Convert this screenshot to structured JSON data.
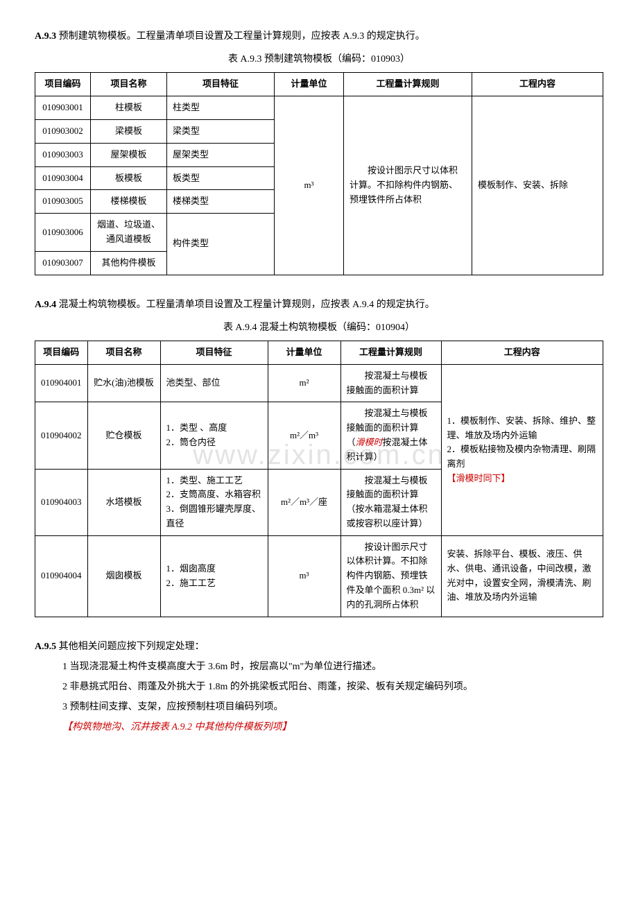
{
  "section1": {
    "header_prefix": "A.9.3",
    "header_text": "预制建筑物模板。工程量清单项目设置及工程量计算规则，应按表 A.9.3 的规定执行。",
    "table_title": "表 A.9.3  预制建筑物模板（编码：010903）",
    "headers": {
      "code": "项目编码",
      "name": "项目名称",
      "feature": "项目特征",
      "unit": "计量单位",
      "rule": "工程量计算规则",
      "content": "工程内容"
    },
    "rows": [
      {
        "code": "010903001",
        "name": "柱模板",
        "feature": "柱类型"
      },
      {
        "code": "010903002",
        "name": "梁模板",
        "feature": "梁类型"
      },
      {
        "code": "010903003",
        "name": "屋架模板",
        "feature": "屋架类型"
      },
      {
        "code": "010903004",
        "name": "板模板",
        "feature": "板类型"
      },
      {
        "code": "010903005",
        "name": "楼梯模板",
        "feature": "楼梯类型"
      },
      {
        "code": "010903006",
        "name": "烟道、垃圾道、通风道模板",
        "feature": "构件类型"
      },
      {
        "code": "010903007",
        "name": "其他构件模板",
        "feature": ""
      }
    ],
    "unit_merged": "m³",
    "rule_merged": "按设计图示尺寸以体积计算。不扣除构件内钢筋、预埋铁件所占体积",
    "content_merged": "模板制作、安装、拆除"
  },
  "section2": {
    "header_prefix": "A.9.4",
    "header_text": "混凝土构筑物模板。工程量清单项目设置及工程量计算规则，应按表 A.9.4 的规定执行。",
    "table_title": "表 A.9.4  混凝土构筑物模板（编码：010904）",
    "headers": {
      "code": "项目编码",
      "name": "项目名称",
      "feature": "项目特征",
      "unit": "计量单位",
      "rule": "工程量计算规则",
      "content": "工程内容"
    },
    "row1": {
      "code": "010904001",
      "name": "贮水(油)池模板",
      "feature": "池类型、部位",
      "unit": "m²",
      "rule": "按混凝土与模板接触面的面积计算"
    },
    "row2": {
      "code": "010904002",
      "name": "贮仓模板",
      "feature": "1．类型 、高度\n2．筒仓内径",
      "unit": "m²／m³",
      "rule_pre": "按混凝土与模板接触面的面积计算（",
      "rule_red": "滑模时",
      "rule_post": "按混凝土体积计算）"
    },
    "row3": {
      "code": "010904003",
      "name": "水塔模板",
      "feature": "1．类型、施工工艺\n2．支筒高度、水箱容积\n3．倒圆锥形罐壳厚度、直径",
      "unit": "m²／m³／座",
      "rule": "按混凝土与模板接触面的面积计算（按水箱混凝土体积或按容积以座计算）"
    },
    "content_merged_pre": "1．模板制作、安装、拆除、维护、整理、堆放及场内外运输\n2．模板粘接物及模内杂物清理、刷隔离剂",
    "content_merged_red": "【滑模时同下】",
    "row4": {
      "code": "010904004",
      "name": "烟囱模板",
      "feature": "1．烟囱高度\n2．施工工艺",
      "unit": "m³",
      "rule": "按设计图示尺寸以体积计算。不扣除构件内钢筋、预埋铁件及单个面积 0.3m² 以内的孔洞所占体积",
      "content": "安装、拆除平台、模板、液压、供水、供电、通讯设备，中间改模，激光对中，设置安全网，滑模清洗、刷油、堆放及场内外运输"
    }
  },
  "section3": {
    "heading_prefix": "A.9.5",
    "heading_text": "其他相关问题应按下列规定处理：",
    "item1": "1  当现浇混凝土构件支模高度大于 3.6m 时，按层高以\"m\"为单位进行描述。",
    "item2": "2  非悬挑式阳台、雨蓬及外挑大于 1.8m 的外挑梁板式阳台、雨蓬，按梁、板有关规定编码列项。",
    "item3": "3  预制柱间支撑、支架，应按预制柱项目编码列项。",
    "item4_red": "【构筑物地沟、沉井按表 A.9.2 中其他构件模板列项】"
  },
  "watermark": "www.zixin.com.cn"
}
